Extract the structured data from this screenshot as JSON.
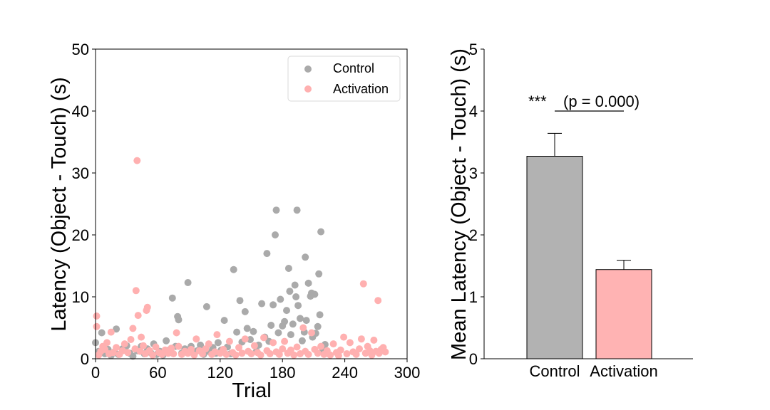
{
  "chart_data": [
    {
      "type": "scatter",
      "xlabel": "Trial",
      "ylabel": "Latency (Object - Touch) (s)",
      "xlim": [
        0,
        300
      ],
      "ylim": [
        0,
        50
      ],
      "x_ticks": [
        "0",
        "60",
        "120",
        "180",
        "240",
        "300"
      ],
      "y_ticks": [
        "0",
        "10",
        "20",
        "30",
        "40",
        "50"
      ],
      "legend_position": "top-right",
      "series": [
        {
          "name": "Control",
          "color": "#aaaaaa",
          "points": [
            [
              0,
              2.6
            ],
            [
              3,
              1.2
            ],
            [
              6,
              4.2
            ],
            [
              9,
              0.8
            ],
            [
              12,
              1.5
            ],
            [
              15,
              0.5
            ],
            [
              18,
              1.1
            ],
            [
              20,
              4.8
            ],
            [
              22,
              0.7
            ],
            [
              26,
              1.6
            ],
            [
              30,
              2.1
            ],
            [
              33,
              0.9
            ],
            [
              36,
              0.4
            ],
            [
              40,
              1.3
            ],
            [
              44,
              2.0
            ],
            [
              47,
              0.8
            ],
            [
              50,
              1.6
            ],
            [
              53,
              1.0
            ],
            [
              56,
              2.4
            ],
            [
              59,
              0.7
            ],
            [
              62,
              1.2
            ],
            [
              65,
              0.6
            ],
            [
              68,
              2.9
            ],
            [
              71,
              1.4
            ],
            [
              74,
              9.8
            ],
            [
              77,
              2.0
            ],
            [
              79,
              6.8
            ],
            [
              80,
              6.3
            ],
            [
              83,
              0.9
            ],
            [
              86,
              1.6
            ],
            [
              89,
              12.3
            ],
            [
              92,
              2.0
            ],
            [
              95,
              0.8
            ],
            [
              98,
              1.3
            ],
            [
              101,
              2.2
            ],
            [
              104,
              0.7
            ],
            [
              107,
              8.4
            ],
            [
              110,
              1.1
            ],
            [
              113,
              1.8
            ],
            [
              116,
              0.9
            ],
            [
              118,
              2.6
            ],
            [
              121,
              1.4
            ],
            [
              124,
              6.2
            ],
            [
              127,
              1.9
            ],
            [
              130,
              0.8
            ],
            [
              133,
              14.4
            ],
            [
              136,
              4.3
            ],
            [
              139,
              9.4
            ],
            [
              141,
              2.7
            ],
            [
              144,
              7.6
            ],
            [
              146,
              4.9
            ],
            [
              149,
              3.1
            ],
            [
              152,
              4.4
            ],
            [
              155,
              1.2
            ],
            [
              157,
              2.2
            ],
            [
              160,
              8.9
            ],
            [
              163,
              3.5
            ],
            [
              165,
              17.0
            ],
            [
              167,
              2.8
            ],
            [
              169,
              5.4
            ],
            [
              171,
              8.7
            ],
            [
              173,
              20.0
            ],
            [
              174,
              24.0
            ],
            [
              176,
              4.2
            ],
            [
              178,
              9.6
            ],
            [
              180,
              5.3
            ],
            [
              182,
              6.0
            ],
            [
              184,
              7.8
            ],
            [
              186,
              14.6
            ],
            [
              187,
              10.9
            ],
            [
              188,
              3.9
            ],
            [
              190,
              5.6
            ],
            [
              192,
              11.9
            ],
            [
              193,
              10.0
            ],
            [
              194,
              24.0
            ],
            [
              195,
              8.6
            ],
            [
              197,
              6.5
            ],
            [
              199,
              2.9
            ],
            [
              201,
              4.3
            ],
            [
              202,
              16.4
            ],
            [
              203,
              6.2
            ],
            [
              205,
              12.2
            ],
            [
              207,
              10.1
            ],
            [
              208,
              10.6
            ],
            [
              209,
              3.5
            ],
            [
              211,
              10.4
            ],
            [
              212,
              4.1
            ],
            [
              214,
              5.2
            ],
            [
              215,
              13.7
            ],
            [
              216,
              7.1
            ],
            [
              217,
              20.5
            ],
            [
              219,
              1.4
            ],
            [
              221,
              2.3
            ],
            [
              223,
              0.9
            ]
          ]
        },
        {
          "name": "Activation",
          "color": "#ffb0b0",
          "points": [
            [
              1,
              6.9
            ],
            [
              1,
              5.2
            ],
            [
              3,
              0.6
            ],
            [
              5,
              1.2
            ],
            [
              7,
              2.0
            ],
            [
              9,
              1.5
            ],
            [
              11,
              2.6
            ],
            [
              13,
              0.8
            ],
            [
              15,
              4.3
            ],
            [
              17,
              1.0
            ],
            [
              20,
              1.8
            ],
            [
              23,
              0.7
            ],
            [
              26,
              1.3
            ],
            [
              28,
              2.4
            ],
            [
              31,
              1.0
            ],
            [
              34,
              3.1
            ],
            [
              36,
              4.9
            ],
            [
              38,
              1.6
            ],
            [
              39,
              11.0
            ],
            [
              40,
              32.0
            ],
            [
              41,
              7.0
            ],
            [
              43,
              1.2
            ],
            [
              44,
              3.5
            ],
            [
              46,
              2.1
            ],
            [
              48,
              0.8
            ],
            [
              49,
              7.8
            ],
            [
              50,
              8.3
            ],
            [
              52,
              1.3
            ],
            [
              55,
              0.6
            ],
            [
              58,
              1.9
            ],
            [
              61,
              1.0
            ],
            [
              64,
              0.7
            ],
            [
              67,
              1.4
            ],
            [
              70,
              0.9
            ],
            [
              73,
              1.7
            ],
            [
              75,
              0.8
            ],
            [
              78,
              4.2
            ],
            [
              80,
              2.0
            ],
            [
              83,
              0.7
            ],
            [
              86,
              1.2
            ],
            [
              89,
              0.9
            ],
            [
              92,
              1.5
            ],
            [
              95,
              0.6
            ],
            [
              97,
              3.2
            ],
            [
              100,
              1.3
            ],
            [
              103,
              0.8
            ],
            [
              106,
              1.6
            ],
            [
              109,
              2.4
            ],
            [
              112,
              0.7
            ],
            [
              115,
              1.1
            ],
            [
              117,
              3.9
            ],
            [
              120,
              0.9
            ],
            [
              123,
              1.5
            ],
            [
              126,
              0.7
            ],
            [
              129,
              2.8
            ],
            [
              132,
              1.0
            ],
            [
              135,
              0.6
            ],
            [
              138,
              1.8
            ],
            [
              141,
              0.9
            ],
            [
              144,
              3.2
            ],
            [
              147,
              1.2
            ],
            [
              150,
              0.8
            ],
            [
              153,
              2.1
            ],
            [
              156,
              1.0
            ],
            [
              159,
              0.6
            ],
            [
              162,
              3.4
            ],
            [
              165,
              1.3
            ],
            [
              168,
              0.8
            ],
            [
              171,
              2.6
            ],
            [
              174,
              1.1
            ],
            [
              177,
              0.7
            ],
            [
              180,
              1.6
            ],
            [
              182,
              2.8
            ],
            [
              185,
              0.9
            ],
            [
              188,
              1.4
            ],
            [
              191,
              0.6
            ],
            [
              194,
              1.9
            ],
            [
              197,
              0.8
            ],
            [
              200,
              5.0
            ],
            [
              202,
              1.2
            ],
            [
              205,
              0.7
            ],
            [
              208,
              4.2
            ],
            [
              211,
              1.5
            ],
            [
              214,
              0.9
            ],
            [
              217,
              2.0
            ],
            [
              220,
              0.7
            ],
            [
              223,
              1.3
            ],
            [
              226,
              0.6
            ],
            [
              229,
              2.4
            ],
            [
              232,
              1.0
            ],
            [
              234,
              0.5
            ],
            [
              236,
              1.4
            ],
            [
              239,
              3.5
            ],
            [
              242,
              0.8
            ],
            [
              245,
              2.6
            ],
            [
              248,
              1.1
            ],
            [
              251,
              0.7
            ],
            [
              254,
              1.6
            ],
            [
              256,
              3.2
            ],
            [
              258,
              12.1
            ],
            [
              260,
              0.9
            ],
            [
              262,
              2.0
            ],
            [
              264,
              1.3
            ],
            [
              266,
              0.6
            ],
            [
              268,
              3.0
            ],
            [
              270,
              1.2
            ],
            [
              272,
              9.4
            ],
            [
              273,
              0.9
            ],
            [
              275,
              1.5
            ],
            [
              277,
              1.8
            ],
            [
              279,
              1.1
            ]
          ]
        }
      ]
    },
    {
      "type": "bar",
      "ylabel": "Mean Latency (Object - Touch) (s)",
      "xlabel": "",
      "ylim": [
        0,
        5
      ],
      "y_ticks": [
        "0",
        "1",
        "2",
        "3",
        "4",
        "5"
      ],
      "categories": [
        "Control",
        "Activation"
      ],
      "values": [
        3.27,
        1.44
      ],
      "errors": [
        0.37,
        0.15
      ],
      "colors": [
        "#b2b2b2",
        "#ffb3b3"
      ],
      "significance": {
        "stars": "***",
        "label": "(p = 0.000)",
        "y": 4.0
      }
    }
  ]
}
